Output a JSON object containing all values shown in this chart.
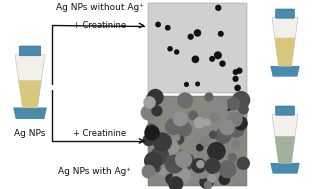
{
  "bg_color": "#ffffff",
  "left_vial_label": "Ag NPs",
  "top_label": "Ag NPs without Ag⁺",
  "bottom_label": "Ag NPs with Ag⁺",
  "top_arrow_label": "+ Creatinine",
  "bottom_arrow_label": "+ Creatinine",
  "vial_yellow_color": "#d4c472",
  "vial_green_color": "#9aaa90",
  "vial_body_color": "#f2f0eb",
  "vial_cap_color": "#4a8aaa",
  "vial_base_color": "#4a8aaa",
  "arrow_color": "#111111",
  "text_color": "#111111",
  "font_size_label": 6.5,
  "font_size_small": 6.0,
  "tem_top_bg": "#d0d0d0",
  "tem_top_dot": "#111111",
  "tem_bottom_bg": "#888880",
  "tem_bottom_dot_dark": "#222222",
  "tem_bottom_dot_mid": "#555550"
}
